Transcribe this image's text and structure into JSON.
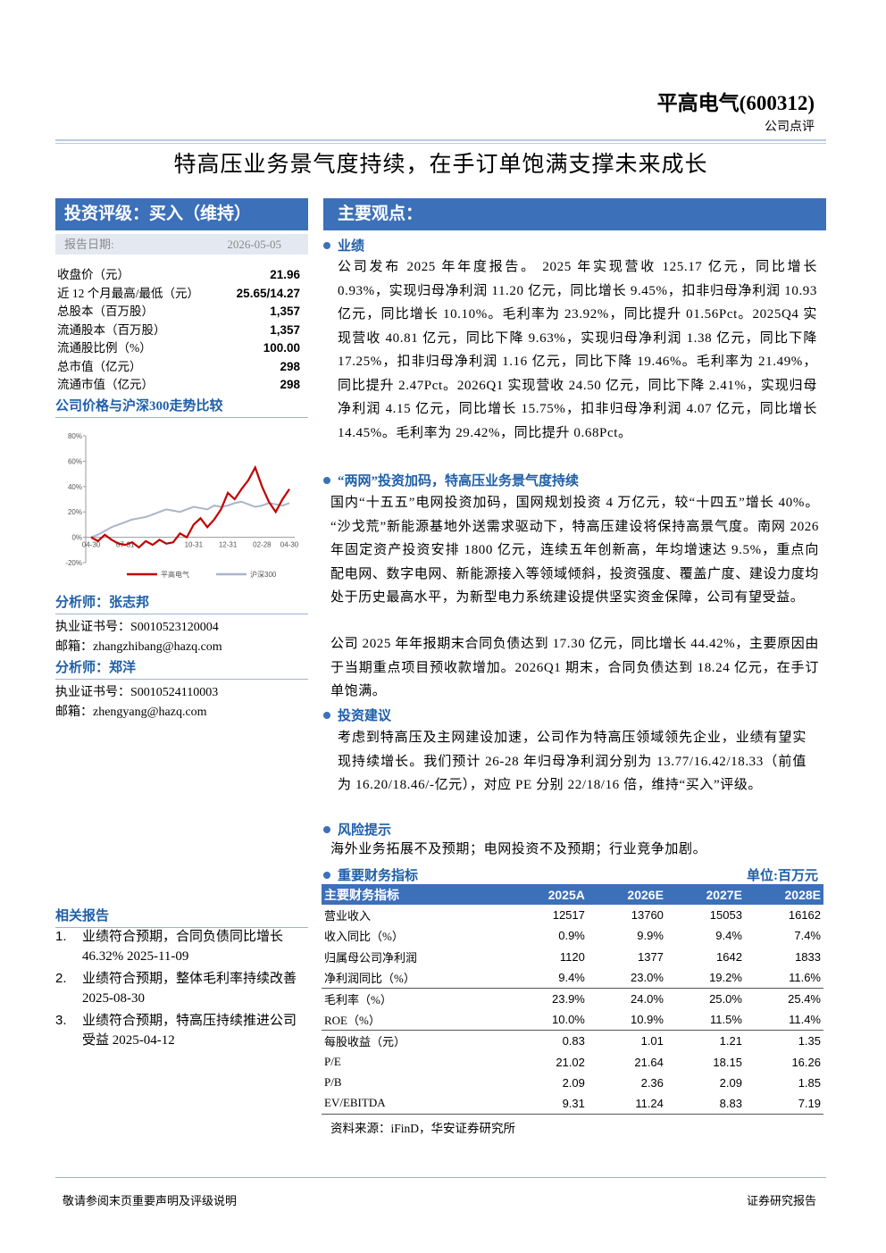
{
  "header": {
    "company": "平高电气(600312)",
    "report_type": "公司点评",
    "title": "特高压业务景气度持续，在手订单饱满支撑未来成长"
  },
  "rating": {
    "label": "投资评级：买入（维持）",
    "date_label": "报告日期:",
    "date": "2026-05-05"
  },
  "stock_info": [
    {
      "label": "收盘价（元）",
      "value": "21.96"
    },
    {
      "label": "近 12 个月最高/最低（元）",
      "value": "25.65/14.27"
    },
    {
      "label": "总股本（百万股）",
      "value": "1,357"
    },
    {
      "label": "流通股本（百万股）",
      "value": "1,357"
    },
    {
      "label": "流通股比例（%）",
      "value": "100.00"
    },
    {
      "label": "总市值（亿元）",
      "value": "298"
    },
    {
      "label": "流通市值（亿元）",
      "value": "298"
    }
  ],
  "chart_data": {
    "type": "line",
    "title": "公司价格与沪深300走势比较",
    "categories": [
      "04-30",
      null,
      null,
      null,
      null,
      "07-31",
      null,
      null,
      null,
      null,
      null,
      null,
      null,
      null,
      null,
      "10-31",
      null,
      null,
      null,
      null,
      "12-31",
      null,
      null,
      null,
      null,
      "02-28",
      null,
      null,
      null,
      "04-30"
    ],
    "series": [
      {
        "name": "平高电气",
        "color": "#c00000",
        "values": [
          0,
          -3,
          2,
          -2,
          -5,
          -6,
          -4,
          -8,
          -3,
          -6,
          -2,
          -5,
          -4,
          3,
          0,
          10,
          15,
          8,
          14,
          22,
          35,
          30,
          38,
          45,
          55,
          40,
          28,
          20,
          30,
          38
        ]
      },
      {
        "name": "沪深300",
        "color": "#a9b5c9",
        "values": [
          0,
          2,
          5,
          8,
          10,
          12,
          14,
          15,
          16,
          18,
          20,
          22,
          21,
          20,
          22,
          24,
          23,
          22,
          25,
          24,
          25,
          27,
          28,
          26,
          24,
          25,
          27,
          26,
          25,
          27
        ]
      }
    ],
    "ylim": [
      -20,
      80
    ],
    "yticks": [
      {
        "value": -20,
        "label": "-20%"
      },
      {
        "value": 0,
        "label": "0%"
      },
      {
        "value": 20,
        "label": "20%"
      },
      {
        "value": 40,
        "label": "40%"
      },
      {
        "value": 60,
        "label": "60%"
      },
      {
        "value": 80,
        "label": "80%"
      }
    ]
  },
  "analysts": [
    {
      "name": "分析师：张志邦",
      "cert": "执业证书号：S0010523120004",
      "email": "邮箱：zhangzhibang@hazq.com"
    },
    {
      "name": "分析师：郑洋",
      "cert": "执业证书号：S0010524110003",
      "email": "邮箱：zhengyang@hazq.com"
    }
  ],
  "related": {
    "title": "相关报告",
    "items": [
      {
        "num": "1.",
        "text": "业绩符合预期，合同负债同比增长 46.32% 2025-11-09"
      },
      {
        "num": "2.",
        "text": "业绩符合预期，整体毛利率持续改善 2025-08-30"
      },
      {
        "num": "3.",
        "text": "业绩符合预期，特高压持续推进公司受益 2025-04-12"
      }
    ]
  },
  "main": {
    "title": "主要观点：",
    "sections": [
      {
        "heading": "业绩",
        "paragraphs": [
          "公司发布 2025 年年度报告。 2025 年实现营收 125.17 亿元，同比增长 0.93%，实现归母净利润 11.20 亿元，同比增长 9.45%，扣非归母净利润 10.93 亿元，同比增长 10.10%。毛利率为 23.92%，同比提升 01.56Pct。2025Q4 实现营收 40.81 亿元，同比下降 9.63%，实现归母净利润 1.38 亿元，同比下降 17.25%，扣非归母净利润 1.16 亿元，同比下降 19.46%。毛利率为 21.49%，同比提升 2.47Pct。2026Q1 实现营收 24.50 亿元，同比下降 2.41%，实现归母净利润 4.15 亿元，同比增长 15.75%，扣非归母净利润 4.07 亿元，同比增长 14.45%。毛利率为 29.42%，同比提升 0.68Pct。"
        ]
      },
      {
        "heading": "“两网”投资加码，特高压业务景气度持续",
        "paragraphs": [
          "国内“十五五”电网投资加码，国网规划投资 4 万亿元，较“十四五”增长 40%。“沙戈荒”新能源基地外送需求驱动下，特高压建设将保持高景气度。南网 2026 年固定资产投资安排 1800 亿元，连续五年创新高，年均增速达 9.5%，重点向配电网、数字电网、新能源接入等领域倾斜，投资强度、覆盖广度、建设力度均处于历史最高水平，为新型电力系统建设提供坚实资金保障，公司有望受益。",
          "公司 2025 年年报期末合同负债达到 17.30 亿元，同比增长 44.42%，主要原因由于当期重点项目预收款增加。2026Q1 期末，合同负债达到 18.24 亿元，在手订单饱满。"
        ]
      },
      {
        "heading": "投资建议",
        "paragraphs": [
          "考虑到特高压及主网建设加速，公司作为特高压领域领先企业，业绩有望实现持续增长。我们预计 26-28 年归母净利润分别为 13.77/16.42/18.33（前值为 16.20/18.46/-亿元），对应 PE 分别 22/18/16 倍，维持“买入”评级。"
        ]
      },
      {
        "heading": "风险提示",
        "paragraphs": [
          "海外业务拓展不及预期；电网投资不及预期；行业竞争加剧。"
        ]
      }
    ]
  },
  "financials": {
    "title": "重要财务指标",
    "unit": "单位:百万元",
    "header": [
      "主要财务指标",
      "2025A",
      "2026E",
      "2027E",
      "2028E"
    ],
    "rows": [
      [
        "营业收入",
        "12517",
        "13760",
        "15053",
        "16162"
      ],
      [
        "收入同比（%）",
        "0.9%",
        "9.9%",
        "9.4%",
        "7.4%"
      ],
      [
        "归属母公司净利润",
        "1120",
        "1377",
        "1642",
        "1833"
      ],
      [
        "净利润同比（%）",
        "9.4%",
        "23.0%",
        "19.2%",
        "11.6%"
      ],
      [
        "毛利率（%）",
        "23.9%",
        "24.0%",
        "25.0%",
        "25.4%"
      ],
      [
        "ROE（%）",
        "10.0%",
        "10.9%",
        "11.5%",
        "11.4%"
      ],
      [
        "每股收益（元）",
        "0.83",
        "1.01",
        "1.21",
        "1.35"
      ],
      [
        "P/E",
        "21.02",
        "21.64",
        "18.15",
        "16.26"
      ],
      [
        "P/B",
        "2.09",
        "2.36",
        "2.09",
        "1.85"
      ],
      [
        "EV/EBITDA",
        "9.31",
        "11.24",
        "8.83",
        "7.19"
      ]
    ],
    "source": "资料来源：iFinD，华安证券研究所"
  },
  "footer": {
    "left": "敬请参阅末页重要声明及评级说明",
    "right": "证券研究报告"
  }
}
